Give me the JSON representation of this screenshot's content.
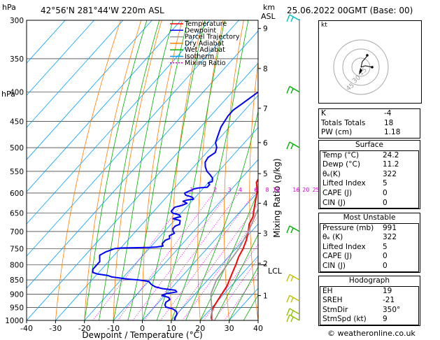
{
  "header": {
    "location": "42°56'N  281°44'W  220m  ASL",
    "datetime": "25.06.2022  00GMT  (Base: 00)"
  },
  "chart_data": {
    "type": "line",
    "title": "",
    "xlabel": "Dewpoint / Temperature (°C)",
    "ylabel": "hPa",
    "y2label": "Mixing Ratio (g/kg)",
    "height_label_km": "km",
    "height_label_asl": "ASL",
    "lcl_label": "LCL",
    "xlim": [
      -40,
      40
    ],
    "ylim": [
      1000,
      300
    ],
    "x_ticks": [
      -40,
      -30,
      -20,
      -10,
      0,
      10,
      20,
      30,
      40
    ],
    "p_ticks": [
      300,
      350,
      400,
      450,
      500,
      550,
      600,
      650,
      700,
      750,
      800,
      850,
      900,
      950,
      1000
    ],
    "height_ticks": [
      {
        "km": "9",
        "p": 310
      },
      {
        "km": "8",
        "p": 364
      },
      {
        "km": "7",
        "p": 427
      },
      {
        "km": "6",
        "p": 490
      },
      {
        "km": "5",
        "p": 555
      },
      {
        "km": "4",
        "p": 625
      },
      {
        "km": "3",
        "p": 705
      },
      {
        "km": "2",
        "p": 795
      },
      {
        "km": "1",
        "p": 905
      }
    ],
    "lcl_p": 800,
    "mixing_ratio_labels": [
      "1",
      "2",
      "3",
      "4",
      "6",
      "8",
      "10",
      "16",
      "20",
      "25"
    ],
    "legend": [
      {
        "name": "Temperature",
        "color": "#ff0000"
      },
      {
        "name": "Dewpoint",
        "color": "#0000ff"
      },
      {
        "name": "Parcel Trajectory",
        "color": "#999999"
      },
      {
        "name": "Dry Adiabat",
        "color": "#ff8000"
      },
      {
        "name": "Wet Adiabat",
        "color": "#00b000"
      },
      {
        "name": "Isotherm",
        "color": "#00a0ff"
      },
      {
        "name": "Mixing Ratio",
        "color": "#e000e0"
      }
    ],
    "series": [
      {
        "name": "Temperature",
        "color": "#ff0000",
        "points": [
          [
            24.2,
            1000
          ],
          [
            23,
            990
          ],
          [
            22,
            975
          ],
          [
            21,
            960
          ],
          [
            20.5,
            950
          ],
          [
            20,
            930
          ],
          [
            19.5,
            910
          ],
          [
            19,
            890
          ],
          [
            18.5,
            870
          ],
          [
            17.5,
            850
          ],
          [
            16,
            820
          ],
          [
            15,
            800
          ],
          [
            13.5,
            775
          ],
          [
            12.5,
            750
          ],
          [
            11,
            725
          ],
          [
            9,
            700
          ],
          [
            7,
            680
          ],
          [
            6,
            660
          ],
          [
            4,
            640
          ],
          [
            2,
            620
          ],
          [
            0,
            600
          ],
          [
            -2,
            585
          ],
          [
            -3.5,
            575
          ],
          [
            -4,
            565
          ],
          [
            -5,
            550
          ],
          [
            -6,
            540
          ],
          [
            -7.5,
            525
          ],
          [
            -8.5,
            515
          ],
          [
            -10,
            500
          ],
          [
            -12,
            485
          ],
          [
            -14,
            470
          ],
          [
            -16,
            455
          ],
          [
            -18,
            440
          ],
          [
            -20,
            425
          ],
          [
            -23,
            410
          ],
          [
            -25,
            398
          ],
          [
            -28,
            380
          ],
          [
            -31,
            362
          ],
          [
            -34,
            345
          ],
          [
            -36,
            333
          ],
          [
            -38,
            322
          ],
          [
            -40.5,
            310
          ],
          [
            -42,
            302
          ],
          [
            -42.5,
            298
          ]
        ]
      },
      {
        "name": "Dewpoint",
        "color": "#0000ff",
        "points": [
          [
            11.2,
            1000
          ],
          [
            10.5,
            990
          ],
          [
            10,
            975
          ],
          [
            9,
            965
          ],
          [
            7,
            955
          ],
          [
            4,
            948
          ],
          [
            3,
            940
          ],
          [
            2.5,
            930
          ],
          [
            3,
            920
          ],
          [
            2,
            912
          ],
          [
            -1,
            905
          ],
          [
            0,
            898
          ],
          [
            3,
            892
          ],
          [
            2,
            886
          ],
          [
            -3,
            880
          ],
          [
            -6,
            874
          ],
          [
            -8,
            866
          ],
          [
            -10,
            855
          ],
          [
            -14,
            850
          ],
          [
            -17,
            848
          ],
          [
            -19,
            846
          ],
          [
            -24,
            840
          ],
          [
            -26,
            835
          ],
          [
            -30,
            830
          ],
          [
            -32,
            825
          ],
          [
            -33,
            815
          ],
          [
            -33,
            805
          ],
          [
            -33,
            790
          ],
          [
            -34,
            780
          ],
          [
            -35,
            770
          ],
          [
            -34,
            760
          ],
          [
            -33,
            755
          ],
          [
            -32,
            750
          ],
          [
            -30,
            748
          ],
          [
            -20,
            746
          ],
          [
            -18,
            745
          ],
          [
            -16,
            742
          ],
          [
            -17,
            735
          ],
          [
            -17,
            725
          ],
          [
            -16,
            720
          ],
          [
            -17,
            712
          ],
          [
            -16,
            705
          ],
          [
            -17,
            700
          ],
          [
            -18,
            692
          ],
          [
            -18,
            685
          ],
          [
            -17,
            680
          ],
          [
            -18,
            670
          ],
          [
            -21,
            665
          ],
          [
            -20,
            662
          ],
          [
            -19,
            660
          ],
          [
            -20,
            655
          ],
          [
            -23,
            650
          ],
          [
            -24,
            645
          ],
          [
            -24,
            635
          ],
          [
            -22,
            630
          ],
          [
            -21,
            625
          ],
          [
            -23,
            620
          ],
          [
            -22,
            617
          ],
          [
            -20,
            615
          ],
          [
            -21,
            610
          ],
          [
            -24,
            605
          ],
          [
            -25,
            600
          ],
          [
            -24,
            595
          ],
          [
            -23,
            590
          ],
          [
            -22,
            588
          ],
          [
            -19,
            586
          ],
          [
            -19,
            580
          ],
          [
            -20,
            576
          ],
          [
            -19,
            573
          ],
          [
            -20,
            565
          ],
          [
            -22,
            557
          ],
          [
            -24,
            550
          ],
          [
            -26,
            540
          ],
          [
            -27.5,
            530
          ],
          [
            -28,
            520
          ],
          [
            -27,
            510
          ],
          [
            -28,
            500
          ],
          [
            -30,
            490
          ],
          [
            -31,
            480
          ],
          [
            -32,
            470
          ],
          [
            -33,
            460
          ],
          [
            -33.5,
            450
          ],
          [
            -34,
            440
          ],
          [
            -34,
            430
          ],
          [
            -33,
            420
          ],
          [
            -32,
            410
          ],
          [
            -31,
            400
          ],
          [
            -30,
            392
          ],
          [
            -29,
            385
          ],
          [
            -27,
            378
          ],
          [
            -27,
            370
          ],
          [
            -28,
            365
          ],
          [
            -30,
            360
          ],
          [
            -30,
            355
          ],
          [
            -28,
            352
          ],
          [
            -25,
            348
          ],
          [
            -23,
            345
          ],
          [
            -22,
            340
          ],
          [
            -21,
            336
          ],
          [
            -21,
            330
          ],
          [
            -20,
            325
          ],
          [
            -19,
            322
          ],
          [
            -18,
            318
          ],
          [
            -17.5,
            315
          ],
          [
            -16,
            313
          ],
          [
            -15,
            310
          ],
          [
            -15,
            305
          ],
          [
            -16,
            300
          ]
        ]
      },
      {
        "name": "Parcel Trajectory",
        "color": "#999999",
        "points": [
          [
            24.2,
            1000
          ],
          [
            20,
            950
          ],
          [
            15.5,
            900
          ],
          [
            13,
            850
          ],
          [
            12,
            800
          ],
          [
            11,
            750
          ],
          [
            9,
            700
          ],
          [
            6,
            650
          ],
          [
            3,
            600
          ],
          [
            -1,
            550
          ],
          [
            -6,
            500
          ],
          [
            -12,
            450
          ],
          [
            -19,
            400
          ],
          [
            -27,
            350
          ],
          [
            -38,
            300
          ]
        ]
      }
    ],
    "wind_barbs": [
      {
        "p": 300,
        "color": "#00c0c0"
      },
      {
        "p": 400,
        "color": "#00b000"
      },
      {
        "p": 500,
        "color": "#00b000"
      },
      {
        "p": 700,
        "color": "#00b000"
      },
      {
        "p": 850,
        "color": "#c0c000"
      },
      {
        "p": 925,
        "color": "#c0c000"
      },
      {
        "p": 975,
        "color": "#90c000"
      },
      {
        "p": 1000,
        "color": "#90c000"
      }
    ]
  },
  "hodograph": {
    "unit": "kt",
    "ring_labels": [
      "45",
      "30",
      "15"
    ]
  },
  "indices": [
    {
      "label": "K",
      "value": "-4"
    },
    {
      "label": "Totals Totals",
      "value": "18"
    },
    {
      "label": "PW (cm)",
      "value": "1.18"
    }
  ],
  "surface": {
    "title": "Surface",
    "rows": [
      {
        "label": "Temp (°C)",
        "value": "24.2"
      },
      {
        "label": "Dewp (°C)",
        "value": "11.2"
      },
      {
        "label": "θₑ(K)",
        "value": "322"
      },
      {
        "label": "Lifted Index",
        "value": "5"
      },
      {
        "label": "CAPE (J)",
        "value": "0"
      },
      {
        "label": "CIN (J)",
        "value": "0"
      }
    ]
  },
  "most_unstable": {
    "title": "Most Unstable",
    "rows": [
      {
        "label": "Pressure (mb)",
        "value": "991"
      },
      {
        "label": "θₑ (K)",
        "value": "322"
      },
      {
        "label": "Lifted Index",
        "value": "5"
      },
      {
        "label": "CAPE (J)",
        "value": "0"
      },
      {
        "label": "CIN (J)",
        "value": "0"
      }
    ]
  },
  "hodograph_stats": {
    "title": "Hodograph",
    "rows": [
      {
        "label": "EH",
        "value": "19"
      },
      {
        "label": "SREH",
        "value": "-21"
      },
      {
        "label": "StmDir",
        "value": "350°"
      },
      {
        "label": "StmSpd (kt)",
        "value": "9"
      }
    ]
  },
  "credit": "© weatheronline.co.uk"
}
